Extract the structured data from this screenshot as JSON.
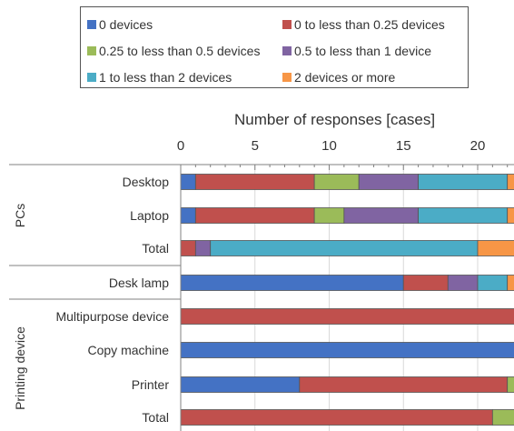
{
  "legend": [
    {
      "label": "0 devices",
      "color": "#4472c4"
    },
    {
      "label": "0 to less than 0.25 devices",
      "color": "#c0504d"
    },
    {
      "label": "0.25 to less than 0.5 devices",
      "color": "#9bbb59"
    },
    {
      "label": "0.5 to less than 1 device",
      "color": "#8064a2"
    },
    {
      "label": "1 to less than 2 devices",
      "color": "#4bacc6"
    },
    {
      "label": "2 devices or more",
      "color": "#f79646"
    }
  ],
  "chart_data": {
    "type": "bar",
    "orientation": "horizontal",
    "stacked": true,
    "xlabel": "Number of responses [cases]",
    "xlim": [
      0,
      22.5
    ],
    "xticks": [
      0,
      5,
      10,
      15,
      20
    ],
    "grid": true,
    "legend_position": "top",
    "groups": [
      {
        "name": "PCs",
        "rows": [
          "Desktop",
          "Laptop",
          "Total"
        ]
      },
      {
        "name": "",
        "rows": [
          "Desk lamp"
        ]
      },
      {
        "name": "Printing device",
        "rows": [
          "Multipurpose device",
          "Copy machine",
          "Printer",
          "Total"
        ]
      }
    ],
    "categories": [
      "Desktop",
      "Laptop",
      "Total",
      "Desk lamp",
      "Multipurpose device",
      "Copy machine",
      "Printer",
      "Total"
    ],
    "series": [
      {
        "name": "0 devices",
        "values": [
          1,
          1,
          0,
          15,
          0,
          22.5,
          8,
          0
        ]
      },
      {
        "name": "0 to less than 0.25 devices",
        "values": [
          8,
          8,
          1,
          3,
          22.5,
          0,
          14,
          21
        ]
      },
      {
        "name": "0.25 to less than 0.5 devices",
        "values": [
          3,
          2,
          0,
          0,
          0,
          0,
          0.5,
          1.5
        ]
      },
      {
        "name": "0.5 to less than 1 device",
        "values": [
          4,
          5,
          1,
          2,
          0,
          0,
          0,
          0
        ]
      },
      {
        "name": "1 to less than 2 devices",
        "values": [
          6,
          6,
          18,
          2,
          0,
          0,
          0,
          0
        ]
      },
      {
        "name": "2 devices or more",
        "values": [
          0.5,
          0.5,
          2.5,
          0.5,
          0,
          0,
          0,
          0
        ]
      }
    ]
  }
}
